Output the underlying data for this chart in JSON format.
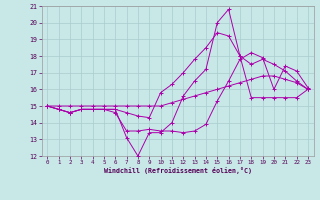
{
  "xlabel": "Windchill (Refroidissement éolien,°C)",
  "xlim": [
    -0.5,
    23.5
  ],
  "ylim": [
    12,
    21
  ],
  "yticks": [
    12,
    13,
    14,
    15,
    16,
    17,
    18,
    19,
    20,
    21
  ],
  "xticks": [
    0,
    1,
    2,
    3,
    4,
    5,
    6,
    7,
    8,
    9,
    10,
    11,
    12,
    13,
    14,
    15,
    16,
    17,
    18,
    19,
    20,
    21,
    22,
    23
  ],
  "background_color": "#c8e8e8",
  "grid_color": "#aacccc",
  "line_color": "#aa00aa",
  "series": [
    [
      15.0,
      14.8,
      14.6,
      14.8,
      14.8,
      14.8,
      14.6,
      13.5,
      13.5,
      13.6,
      13.5,
      13.5,
      13.4,
      13.5,
      13.9,
      15.3,
      16.5,
      17.8,
      18.2,
      17.9,
      16.0,
      17.4,
      17.1,
      16.1
    ],
    [
      15.0,
      14.8,
      14.6,
      14.8,
      14.8,
      14.8,
      14.8,
      13.1,
      12.0,
      13.4,
      13.4,
      14.0,
      15.6,
      16.5,
      17.2,
      20.0,
      20.8,
      18.0,
      15.5,
      15.5,
      15.5,
      15.5,
      15.5,
      16.0
    ],
    [
      15.0,
      14.8,
      14.6,
      14.8,
      14.8,
      14.8,
      14.8,
      14.6,
      14.4,
      14.3,
      15.8,
      16.3,
      17.0,
      17.8,
      18.5,
      19.4,
      19.2,
      18.0,
      17.5,
      17.8,
      17.5,
      17.1,
      16.5,
      16.0
    ],
    [
      15.0,
      15.0,
      15.0,
      15.0,
      15.0,
      15.0,
      15.0,
      15.0,
      15.0,
      15.0,
      15.0,
      15.2,
      15.4,
      15.6,
      15.8,
      16.0,
      16.2,
      16.4,
      16.6,
      16.8,
      16.8,
      16.6,
      16.4,
      16.0
    ]
  ]
}
